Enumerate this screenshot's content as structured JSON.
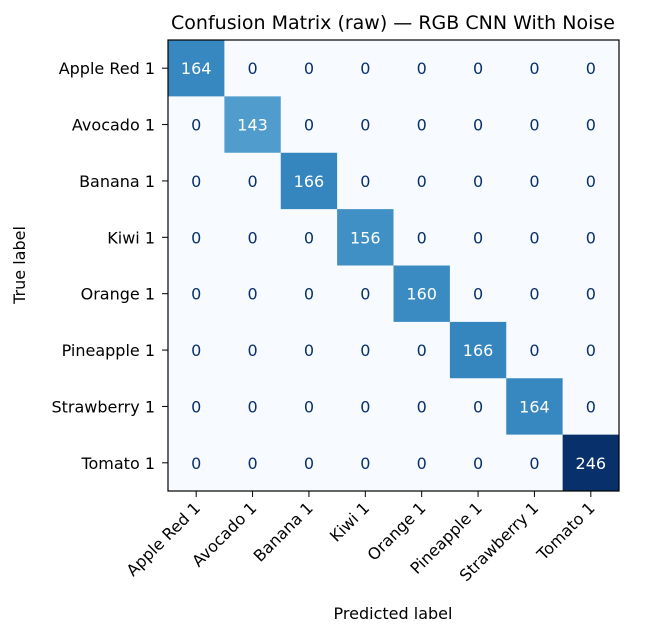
{
  "chart_data": {
    "type": "heatmap",
    "title": "Confusion Matrix (raw) — RGB CNN With Noise",
    "xlabel": "Predicted label",
    "ylabel": "True label",
    "classes": [
      "Apple Red 1",
      "Avocado 1",
      "Banana 1",
      "Kiwi 1",
      "Orange 1",
      "Pineapple 1",
      "Strawberry 1",
      "Tomato 1"
    ],
    "matrix": [
      [
        164,
        0,
        0,
        0,
        0,
        0,
        0,
        0
      ],
      [
        0,
        143,
        0,
        0,
        0,
        0,
        0,
        0
      ],
      [
        0,
        0,
        166,
        0,
        0,
        0,
        0,
        0
      ],
      [
        0,
        0,
        0,
        156,
        0,
        0,
        0,
        0
      ],
      [
        0,
        0,
        0,
        0,
        160,
        0,
        0,
        0
      ],
      [
        0,
        0,
        0,
        0,
        0,
        166,
        0,
        0
      ],
      [
        0,
        0,
        0,
        0,
        0,
        0,
        164,
        0
      ],
      [
        0,
        0,
        0,
        0,
        0,
        0,
        0,
        246
      ]
    ],
    "colormap": "Blues",
    "value_range": [
      0,
      246
    ],
    "colorbar": false,
    "colors": {
      "low": "#f7fbff",
      "mid": "#4292c6",
      "high": "#08306b",
      "text_dark": "#08306b",
      "text_light": "#ffffff",
      "frame": "#000000"
    }
  }
}
